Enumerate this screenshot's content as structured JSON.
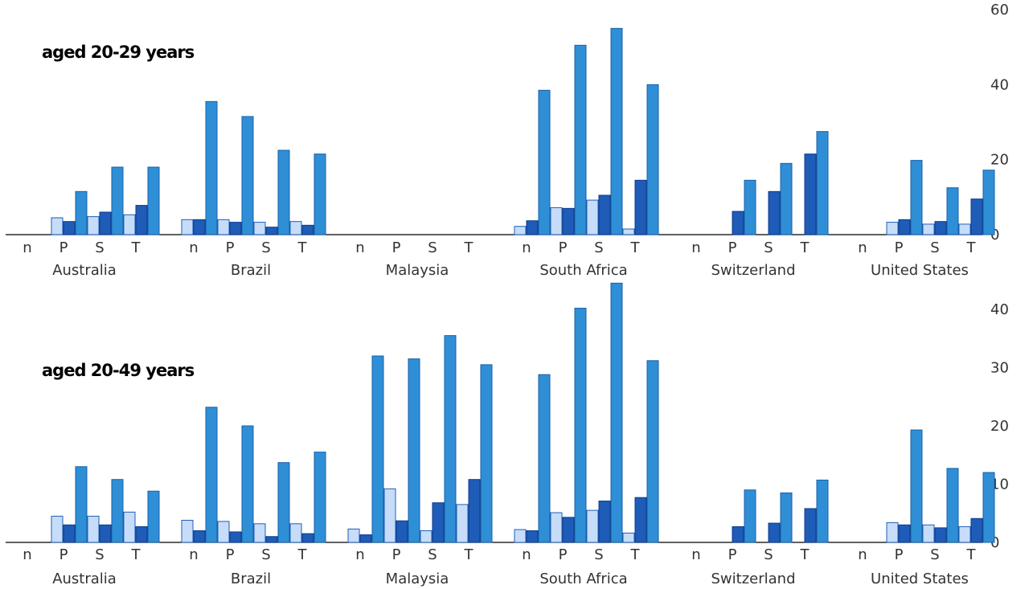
{
  "colors": {
    "series_light": "#c6dcf8",
    "series_light_stroke": "#1f5fb8",
    "series_dark": "#1e5cb8",
    "series_dark_stroke": "#0c3a8a",
    "series_mid": "#2f8fd6",
    "series_mid_stroke": "#1a5fa8"
  },
  "chart_data": [
    {
      "type": "bar",
      "title": "aged 20-29 years",
      "ylim": [
        0,
        60
      ],
      "yticks": [
        0,
        20,
        40,
        60
      ],
      "categories": [
        "Australia",
        "Brazil",
        "Malaysia",
        "South Africa",
        "Switzerland",
        "United States"
      ],
      "subcategories": [
        "n",
        "P",
        "S",
        "T"
      ],
      "series_count": 3,
      "values": {
        "Australia": {
          "n": [
            null,
            null,
            null
          ],
          "P": [
            4.5,
            3.5,
            11.5
          ],
          "S": [
            4.8,
            6,
            18
          ],
          "T": [
            5.3,
            7.8,
            18
          ]
        },
        "Brazil": {
          "n": [
            4,
            4,
            35.5
          ],
          "P": [
            4,
            3.3,
            31.5
          ],
          "S": [
            3.3,
            2,
            22.5
          ],
          "T": [
            3.5,
            2.5,
            21.5
          ]
        },
        "Malaysia": {
          "n": [
            null,
            null,
            null
          ],
          "P": [
            null,
            null,
            null
          ],
          "S": [
            null,
            null,
            null
          ],
          "T": [
            null,
            null,
            null
          ]
        },
        "South Africa": {
          "n": [
            2.2,
            3.7,
            38.5
          ],
          "P": [
            7.2,
            7,
            50.5
          ],
          "S": [
            9.2,
            10.5,
            55
          ],
          "T": [
            1.5,
            14.5,
            40
          ]
        },
        "Switzerland": {
          "n": [
            null,
            null,
            null
          ],
          "P": [
            null,
            6.2,
            14.5
          ],
          "S": [
            null,
            11.5,
            19
          ],
          "T": [
            null,
            21.5,
            27.5
          ]
        },
        "United States": {
          "n": [
            null,
            null,
            null
          ],
          "P": [
            3.3,
            4,
            19.8
          ],
          "S": [
            2.8,
            3.5,
            12.5
          ],
          "T": [
            2.8,
            9.5,
            17.2
          ]
        }
      }
    },
    {
      "type": "bar",
      "title": "aged 20-49 years",
      "ylim": [
        0,
        40
      ],
      "yticks": [
        0,
        10,
        20,
        30,
        40
      ],
      "categories": [
        "Australia",
        "Brazil",
        "Malaysia",
        "South Africa",
        "Switzerland",
        "United States"
      ],
      "subcategories": [
        "n",
        "P",
        "S",
        "T"
      ],
      "series_count": 3,
      "values": {
        "Australia": {
          "n": [
            null,
            null,
            null
          ],
          "P": [
            4.5,
            3,
            13
          ],
          "S": [
            4.5,
            3,
            10.8
          ],
          "T": [
            5.2,
            2.7,
            8.8
          ]
        },
        "Brazil": {
          "n": [
            3.8,
            2,
            23.2
          ],
          "P": [
            3.6,
            1.8,
            20
          ],
          "S": [
            3.2,
            1,
            13.7
          ],
          "T": [
            3.2,
            1.5,
            15.5
          ]
        },
        "Malaysia": {
          "n": [
            2.3,
            1.3,
            32
          ],
          "P": [
            9.2,
            3.7,
            31.5
          ],
          "S": [
            2,
            6.8,
            35.5
          ],
          "T": [
            6.5,
            10.8,
            30.5
          ]
        },
        "South Africa": {
          "n": [
            2.2,
            2,
            28.8
          ],
          "P": [
            5.1,
            4.3,
            40.2
          ],
          "S": [
            5.5,
            7.1,
            44.5
          ],
          "T": [
            1.6,
            7.7,
            31.2
          ]
        },
        "Switzerland": {
          "n": [
            null,
            null,
            null
          ],
          "P": [
            null,
            2.7,
            9
          ],
          "S": [
            null,
            3.3,
            8.5
          ],
          "T": [
            null,
            5.8,
            10.7
          ]
        },
        "United States": {
          "n": [
            null,
            null,
            null
          ],
          "P": [
            3.4,
            3,
            19.3
          ],
          "S": [
            3,
            2.5,
            12.7
          ],
          "T": [
            2.7,
            4.1,
            12
          ]
        }
      }
    }
  ]
}
